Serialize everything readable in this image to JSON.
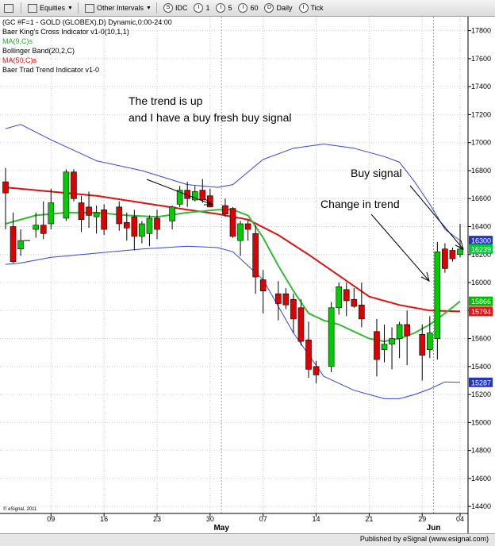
{
  "toolbar": {
    "items": [
      {
        "label": "",
        "icon": "sort-arrows-icon"
      },
      {
        "label": "Equities",
        "icon": "equities-icon",
        "dropdown": true
      },
      {
        "label": "Other Intervals",
        "icon": "intervals-icon",
        "dropdown": true
      },
      {
        "label": "IDC",
        "icon": "circle-s-icon"
      },
      {
        "label": "1",
        "icon": "circle-i-icon"
      },
      {
        "label": "5",
        "icon": "circle-i-icon"
      },
      {
        "label": "60",
        "icon": "circle-i-icon"
      },
      {
        "label": "Daily",
        "icon": "circle-d-icon"
      },
      {
        "label": "Tick",
        "icon": "circle-i-icon"
      }
    ]
  },
  "legend": {
    "title": "(GC #F=1 - GOLD (GLOBEX),D) Dynamic,0:00-24:00",
    "line2": "Baer King's Cross Indicator v1-0(10,1,1)",
    "line3": "MA(9,C)s",
    "line4": "Bollinger Band(20,2,C)",
    "line5": "MA(50,C)s",
    "line6": "Baer Trad Trend Indicator v1-0"
  },
  "annotations": {
    "trend_up_1": "The trend is up",
    "trend_up_2": "and I have a buy fresh buy signal",
    "buy_signal": "Buy signal",
    "change_trend": "Change in trend"
  },
  "watermark": "© eSignal, 2011",
  "footer": "Published by eSignal (www.esignal.com)",
  "colors": {
    "up": "#00cc00",
    "down": "#dd0000",
    "ma9": "#33bb33",
    "ma50": "#e01010",
    "bollinger": "#3344dd",
    "badge_bb_upper": "#2233cc",
    "badge_price": "#00cc33",
    "badge_ma9": "#00bb00",
    "badge_ma50": "#ee1111",
    "badge_bb_lower": "#2233cc"
  },
  "chart_data": {
    "type": "candlestick",
    "ylim": [
      14350,
      17900
    ],
    "y_ticks": [
      17800,
      17600,
      17400,
      17200,
      17000,
      16800,
      16600,
      16400,
      16200,
      16000,
      15800,
      15600,
      15400,
      15200,
      15000,
      14800,
      14600,
      14400
    ],
    "x_ticks": [
      "09",
      "16",
      "23",
      "30",
      "07",
      "14",
      "21",
      "29",
      "04"
    ],
    "x_month_labels": [
      "May",
      "Jun"
    ],
    "candles": [
      {
        "d": 0,
        "o": 16720,
        "h": 16820,
        "l": 16380,
        "c": 16640
      },
      {
        "d": 1,
        "o": 16400,
        "h": 16500,
        "l": 16140,
        "c": 16150
      },
      {
        "d": 2,
        "o": 16240,
        "h": 16380,
        "l": 16190,
        "c": 16300
      },
      {
        "d": 4,
        "o": 16380,
        "h": 16500,
        "l": 16320,
        "c": 16410
      },
      {
        "d": 5,
        "o": 16410,
        "h": 16580,
        "l": 16310,
        "c": 16350
      },
      {
        "d": 6,
        "o": 16420,
        "h": 16670,
        "l": 16380,
        "c": 16570
      },
      {
        "d": 8,
        "o": 16460,
        "h": 16810,
        "l": 16440,
        "c": 16790
      },
      {
        "d": 9,
        "o": 16790,
        "h": 16810,
        "l": 16580,
        "c": 16600
      },
      {
        "d": 10,
        "o": 16570,
        "h": 16620,
        "l": 16360,
        "c": 16450
      },
      {
        "d": 11,
        "o": 16540,
        "h": 16650,
        "l": 16390,
        "c": 16480
      },
      {
        "d": 12,
        "o": 16470,
        "h": 16550,
        "l": 16350,
        "c": 16500
      },
      {
        "d": 13,
        "o": 16520,
        "h": 16560,
        "l": 16340,
        "c": 16380
      },
      {
        "d": 15,
        "o": 16540,
        "h": 16580,
        "l": 16370,
        "c": 16420
      },
      {
        "d": 16,
        "o": 16430,
        "h": 16500,
        "l": 16300,
        "c": 16390
      },
      {
        "d": 17,
        "o": 16470,
        "h": 16520,
        "l": 16230,
        "c": 16330
      },
      {
        "d": 18,
        "o": 16330,
        "h": 16440,
        "l": 16280,
        "c": 16420
      },
      {
        "d": 19,
        "o": 16350,
        "h": 16480,
        "l": 16260,
        "c": 16460
      },
      {
        "d": 20,
        "o": 16460,
        "h": 16520,
        "l": 16310,
        "c": 16380
      },
      {
        "d": 22,
        "o": 16440,
        "h": 16550,
        "l": 16380,
        "c": 16540
      },
      {
        "d": 23,
        "o": 16560,
        "h": 16690,
        "l": 16540,
        "c": 16660
      },
      {
        "d": 24,
        "o": 16660,
        "h": 16720,
        "l": 16540,
        "c": 16600
      },
      {
        "d": 25,
        "o": 16590,
        "h": 16690,
        "l": 16580,
        "c": 16650
      },
      {
        "d": 26,
        "o": 16660,
        "h": 16740,
        "l": 16570,
        "c": 16590
      },
      {
        "d": 27,
        "o": 16620,
        "h": 16670,
        "l": 16540,
        "c": 16540
      },
      {
        "d": 29,
        "o": 16550,
        "h": 16600,
        "l": 16470,
        "c": 16490
      },
      {
        "d": 30,
        "o": 16530,
        "h": 16540,
        "l": 16320,
        "c": 16330
      },
      {
        "d": 31,
        "o": 16300,
        "h": 16440,
        "l": 16190,
        "c": 16420
      },
      {
        "d": 32,
        "o": 16420,
        "h": 16450,
        "l": 16300,
        "c": 16380
      },
      {
        "d": 33,
        "o": 16350,
        "h": 16410,
        "l": 15920,
        "c": 16040
      },
      {
        "d": 34,
        "o": 16020,
        "h": 16090,
        "l": 15780,
        "c": 15940
      },
      {
        "d": 36,
        "o": 15920,
        "h": 16010,
        "l": 15730,
        "c": 15850
      },
      {
        "d": 37,
        "o": 15920,
        "h": 15960,
        "l": 15810,
        "c": 15840
      },
      {
        "d": 38,
        "o": 15880,
        "h": 15920,
        "l": 15640,
        "c": 15740
      },
      {
        "d": 39,
        "o": 15820,
        "h": 15880,
        "l": 15550,
        "c": 15580
      },
      {
        "d": 40,
        "o": 15590,
        "h": 15720,
        "l": 15320,
        "c": 15380
      },
      {
        "d": 41,
        "o": 15400,
        "h": 15440,
        "l": 15280,
        "c": 15340
      },
      {
        "d": 43,
        "o": 15400,
        "h": 15860,
        "l": 15360,
        "c": 15820
      },
      {
        "d": 44,
        "o": 15820,
        "h": 16000,
        "l": 15770,
        "c": 15970
      },
      {
        "d": 45,
        "o": 15950,
        "h": 16000,
        "l": 15760,
        "c": 15870
      },
      {
        "d": 46,
        "o": 15880,
        "h": 15960,
        "l": 15820,
        "c": 15830
      },
      {
        "d": 47,
        "o": 15840,
        "h": 16000,
        "l": 15680,
        "c": 15740
      },
      {
        "d": 49,
        "o": 15650,
        "h": 15740,
        "l": 15330,
        "c": 15450
      },
      {
        "d": 50,
        "o": 15520,
        "h": 15700,
        "l": 15430,
        "c": 15560
      },
      {
        "d": 51,
        "o": 15560,
        "h": 15680,
        "l": 15380,
        "c": 15600
      },
      {
        "d": 52,
        "o": 15600,
        "h": 15720,
        "l": 15460,
        "c": 15700
      },
      {
        "d": 53,
        "o": 15700,
        "h": 15800,
        "l": 15410,
        "c": 15620
      },
      {
        "d": 55,
        "o": 15630,
        "h": 15700,
        "l": 15300,
        "c": 15480
      },
      {
        "d": 56,
        "o": 15520,
        "h": 15760,
        "l": 15460,
        "c": 15640
      },
      {
        "d": 57,
        "o": 15600,
        "h": 16290,
        "l": 15450,
        "c": 16220
      },
      {
        "d": 58,
        "o": 16240,
        "h": 16280,
        "l": 16070,
        "c": 16100
      },
      {
        "d": 59,
        "o": 16230,
        "h": 16250,
        "l": 16150,
        "c": 16170
      },
      {
        "d": 60,
        "o": 16200,
        "h": 16420,
        "l": 16180,
        "c": 16239
      }
    ],
    "series": [
      {
        "key": "ma9",
        "x": [
          0,
          4,
          8,
          12,
          16,
          20,
          24,
          28,
          30,
          32,
          34,
          36,
          38,
          40,
          42,
          44,
          46,
          48,
          50,
          52,
          54,
          56,
          58,
          60
        ],
        "values": [
          16420,
          16480,
          16500,
          16500,
          16480,
          16470,
          16500,
          16520,
          16520,
          16480,
          16320,
          16120,
          15940,
          15780,
          15730,
          15700,
          15650,
          15600,
          15580,
          15600,
          15640,
          15700,
          15780,
          15866
        ]
      },
      {
        "key": "ma50",
        "x": [
          0,
          6,
          12,
          18,
          24,
          28,
          32,
          36,
          40,
          44,
          48,
          52,
          56,
          60
        ],
        "values": [
          16680,
          16650,
          16620,
          16570,
          16520,
          16490,
          16450,
          16340,
          16200,
          16050,
          15900,
          15840,
          15800,
          15794
        ]
      },
      {
        "key": "bb_upper",
        "x": [
          0,
          2,
          6,
          12,
          18,
          24,
          28,
          30,
          34,
          38,
          42,
          46,
          50,
          52,
          54,
          56,
          58,
          60
        ],
        "values": [
          17100,
          17130,
          17020,
          16870,
          16800,
          16700,
          16680,
          16700,
          16880,
          16960,
          16990,
          16960,
          16900,
          16860,
          16720,
          16560,
          16380,
          16300
        ]
      },
      {
        "key": "bb_lower",
        "x": [
          0,
          2,
          6,
          12,
          18,
          24,
          28,
          30,
          34,
          38,
          42,
          46,
          50,
          52,
          54,
          56,
          58,
          60
        ],
        "values": [
          16130,
          16140,
          16180,
          16210,
          16240,
          16260,
          16250,
          16220,
          16020,
          15640,
          15330,
          15230,
          15170,
          15170,
          15200,
          15240,
          15290,
          15287
        ]
      }
    ],
    "price_badges": [
      {
        "value": 16300,
        "label": "16300",
        "role": "bb_upper"
      },
      {
        "value": 16239,
        "label": "16239",
        "role": "price"
      },
      {
        "value": 15866,
        "label": "15866",
        "role": "ma9"
      },
      {
        "value": 15794,
        "label": "15794",
        "role": "ma50"
      },
      {
        "value": 15287,
        "label": "15287",
        "role": "bb_lower"
      }
    ]
  }
}
